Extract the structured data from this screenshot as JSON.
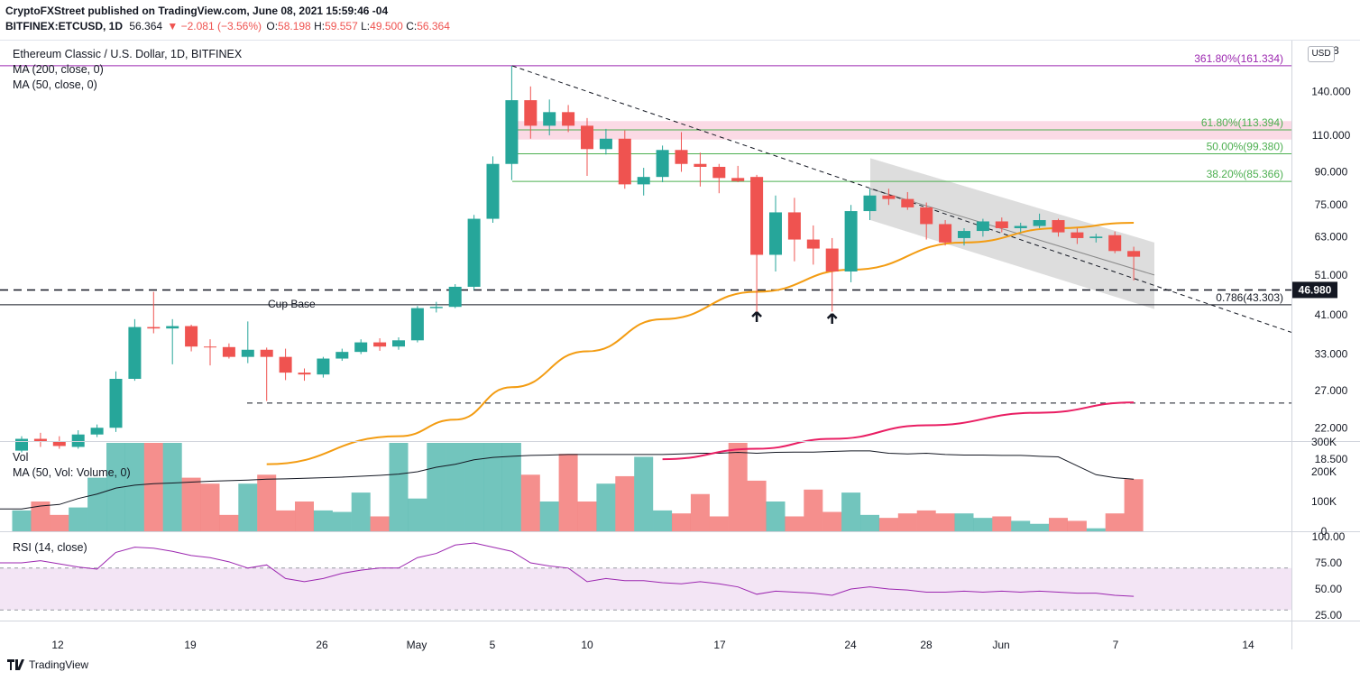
{
  "header": {
    "line1": "CryptoFXStreet published on TradingView.com, June 08, 2021 15:59:46 -04",
    "symbol": "BITFINEX:ETCUSD, 1D",
    "last": "56.364",
    "change": "▼ −2.081 (−3.56%)",
    "o_label": "O:",
    "o_val": "58.198",
    "h_label": "H:",
    "h_val": "59.557",
    "l_label": "L:",
    "l_val": "49.500",
    "c_label": "C:",
    "c_val": "56.364"
  },
  "legend": {
    "title": "Ethereum Classic / U.S. Dollar, 1D, BITFINEX",
    "ma200": "MA (200, close, 0)",
    "ma50": "MA (50, close, 0)",
    "vol": "Vol",
    "vol_ma": "MA (50, Vol: Volume, 0)",
    "rsi": "RSI (14, close)"
  },
  "currency": "USD",
  "footer": {
    "brand": "TradingView"
  },
  "colors": {
    "up": "#26a69a",
    "down": "#ef5350",
    "ma50": "#f39c12",
    "ma200": "#e91e63",
    "rsi": "#9c27b0",
    "rsi_band": "#f3e5f5",
    "fib_green": "#4caf50",
    "fib_purple": "#9c27b0"
  },
  "chart_data": {
    "type": "candlestick",
    "price_axis": {
      "scale": "log",
      "ticks": [
        18.5,
        22,
        27,
        33,
        41,
        51,
        63,
        75,
        90,
        110,
        140
      ],
      "tick_labels": [
        "18.500",
        "22.000",
        "27.000",
        "33.000",
        "41.000",
        "51.000",
        "63.000",
        "75.000",
        "90.000",
        "110.000",
        "140.000"
      ]
    },
    "price_labels": [
      {
        "value": 46.98,
        "text": "46.980"
      }
    ],
    "x_axis": {
      "labels": [
        "12",
        "19",
        "26",
        "May",
        "5",
        "10",
        "17",
        "24",
        "28",
        "Jun",
        "7",
        "14"
      ]
    },
    "candles": [
      {
        "date": "2021-04-10",
        "o": 19.4,
        "h": 21.0,
        "l": 19.2,
        "c": 20.7
      },
      {
        "date": "2021-04-11",
        "o": 20.7,
        "h": 21.4,
        "l": 19.8,
        "c": 20.4
      },
      {
        "date": "2021-04-12",
        "o": 20.4,
        "h": 21.0,
        "l": 19.6,
        "c": 19.9
      },
      {
        "date": "2021-04-13",
        "o": 19.8,
        "h": 21.7,
        "l": 19.6,
        "c": 21.2
      },
      {
        "date": "2021-04-14",
        "o": 21.2,
        "h": 22.4,
        "l": 20.9,
        "c": 22.0
      },
      {
        "date": "2021-04-15",
        "o": 22.0,
        "h": 30.0,
        "l": 21.5,
        "c": 28.8
      },
      {
        "date": "2021-04-16",
        "o": 28.8,
        "h": 40.0,
        "l": 28.5,
        "c": 38.3
      },
      {
        "date": "2021-04-17",
        "o": 38.3,
        "h": 46.5,
        "l": 37.0,
        "c": 38.0
      },
      {
        "date": "2021-04-18",
        "o": 38.0,
        "h": 40.0,
        "l": 31.2,
        "c": 38.5
      },
      {
        "date": "2021-04-19",
        "o": 38.5,
        "h": 38.8,
        "l": 33.5,
        "c": 34.4
      },
      {
        "date": "2021-04-20",
        "o": 34.4,
        "h": 35.8,
        "l": 31.0,
        "c": 34.3
      },
      {
        "date": "2021-04-21",
        "o": 34.3,
        "h": 35.0,
        "l": 32.2,
        "c": 32.5
      },
      {
        "date": "2021-04-22",
        "o": 32.5,
        "h": 39.5,
        "l": 31.4,
        "c": 33.8
      },
      {
        "date": "2021-04-23",
        "o": 33.8,
        "h": 34.2,
        "l": 25.5,
        "c": 32.5
      },
      {
        "date": "2021-04-24",
        "o": 32.5,
        "h": 34.0,
        "l": 28.6,
        "c": 29.8
      },
      {
        "date": "2021-04-25",
        "o": 29.8,
        "h": 30.5,
        "l": 28.5,
        "c": 29.5
      },
      {
        "date": "2021-04-26",
        "o": 29.5,
        "h": 32.5,
        "l": 29.0,
        "c": 32.2
      },
      {
        "date": "2021-04-27",
        "o": 32.2,
        "h": 34.0,
        "l": 31.8,
        "c": 33.4
      },
      {
        "date": "2021-04-28",
        "o": 33.4,
        "h": 35.8,
        "l": 33.0,
        "c": 35.2
      },
      {
        "date": "2021-04-29",
        "o": 35.2,
        "h": 36.0,
        "l": 33.6,
        "c": 34.4
      },
      {
        "date": "2021-04-30",
        "o": 34.4,
        "h": 36.2,
        "l": 33.8,
        "c": 35.6
      },
      {
        "date": "2021-05-01",
        "o": 35.6,
        "h": 43.0,
        "l": 35.2,
        "c": 42.5
      },
      {
        "date": "2021-05-02",
        "o": 42.5,
        "h": 44.0,
        "l": 41.5,
        "c": 42.8
      },
      {
        "date": "2021-05-03",
        "o": 42.8,
        "h": 48.5,
        "l": 42.5,
        "c": 47.8
      },
      {
        "date": "2021-05-04",
        "o": 47.8,
        "h": 71.0,
        "l": 47.0,
        "c": 69.5
      },
      {
        "date": "2021-05-05",
        "o": 69.5,
        "h": 98.0,
        "l": 68.0,
        "c": 94.0
      },
      {
        "date": "2021-05-06",
        "o": 94.0,
        "h": 161.3,
        "l": 86.0,
        "c": 133.5
      },
      {
        "date": "2021-05-07",
        "o": 133.5,
        "h": 144.0,
        "l": 108.0,
        "c": 116.0
      },
      {
        "date": "2021-05-08",
        "o": 116.0,
        "h": 134.0,
        "l": 110.0,
        "c": 125.0
      },
      {
        "date": "2021-05-09",
        "o": 125.0,
        "h": 130.0,
        "l": 112.0,
        "c": 116.0
      },
      {
        "date": "2021-05-10",
        "o": 116.0,
        "h": 121.0,
        "l": 88.0,
        "c": 102.0
      },
      {
        "date": "2021-05-11",
        "o": 102.0,
        "h": 114.0,
        "l": 99.0,
        "c": 108.0
      },
      {
        "date": "2021-05-12",
        "o": 108.0,
        "h": 113.0,
        "l": 82.0,
        "c": 84.0
      },
      {
        "date": "2021-05-13",
        "o": 84.0,
        "h": 92.0,
        "l": 79.0,
        "c": 87.5
      },
      {
        "date": "2021-05-14",
        "o": 87.5,
        "h": 104.0,
        "l": 85.0,
        "c": 101.5
      },
      {
        "date": "2021-05-15",
        "o": 101.5,
        "h": 112.0,
        "l": 90.0,
        "c": 94.0
      },
      {
        "date": "2021-05-16",
        "o": 94.0,
        "h": 100.0,
        "l": 83.0,
        "c": 92.5
      },
      {
        "date": "2021-05-17",
        "o": 92.5,
        "h": 94.0,
        "l": 80.0,
        "c": 87.0
      },
      {
        "date": "2021-05-18",
        "o": 87.0,
        "h": 93.0,
        "l": 85.0,
        "c": 85.5
      },
      {
        "date": "2021-05-19",
        "o": 87.5,
        "h": 88.5,
        "l": 41.7,
        "c": 57.0
      },
      {
        "date": "2021-05-20",
        "o": 57.0,
        "h": 79.0,
        "l": 52.0,
        "c": 72.0
      },
      {
        "date": "2021-05-21",
        "o": 72.0,
        "h": 78.0,
        "l": 55.0,
        "c": 62.0
      },
      {
        "date": "2021-05-22",
        "o": 62.0,
        "h": 67.0,
        "l": 54.0,
        "c": 59.0
      },
      {
        "date": "2021-05-23",
        "o": 59.0,
        "h": 62.5,
        "l": 41.7,
        "c": 52.0
      },
      {
        "date": "2021-05-24",
        "o": 52.0,
        "h": 75.0,
        "l": 49.0,
        "c": 72.5
      },
      {
        "date": "2021-05-25",
        "o": 72.5,
        "h": 82.0,
        "l": 69.0,
        "c": 79.0
      },
      {
        "date": "2021-05-26",
        "o": 79.0,
        "h": 82.0,
        "l": 75.0,
        "c": 77.5
      },
      {
        "date": "2021-05-27",
        "o": 77.5,
        "h": 80.5,
        "l": 73.0,
        "c": 74.0
      },
      {
        "date": "2021-05-28",
        "o": 74.0,
        "h": 76.0,
        "l": 62.0,
        "c": 67.5
      },
      {
        "date": "2021-05-29",
        "o": 67.5,
        "h": 69.0,
        "l": 60.0,
        "c": 61.0
      },
      {
        "date": "2021-05-30",
        "o": 62.5,
        "h": 66.0,
        "l": 60.0,
        "c": 65.0
      },
      {
        "date": "2021-05-31",
        "o": 65.0,
        "h": 69.5,
        "l": 63.0,
        "c": 68.5
      },
      {
        "date": "2021-06-01",
        "o": 68.5,
        "h": 70.0,
        "l": 64.5,
        "c": 66.0
      },
      {
        "date": "2021-06-02",
        "o": 66.0,
        "h": 68.0,
        "l": 64.5,
        "c": 66.8
      },
      {
        "date": "2021-06-03",
        "o": 66.8,
        "h": 71.5,
        "l": 66.0,
        "c": 69.0
      },
      {
        "date": "2021-06-04",
        "o": 69.0,
        "h": 69.5,
        "l": 63.0,
        "c": 64.5
      },
      {
        "date": "2021-06-05",
        "o": 64.5,
        "h": 66.0,
        "l": 60.5,
        "c": 62.5
      },
      {
        "date": "2021-06-06",
        "o": 62.5,
        "h": 64.0,
        "l": 61.0,
        "c": 63.0
      },
      {
        "date": "2021-06-07",
        "o": 63.5,
        "h": 64.8,
        "l": 57.5,
        "c": 58.2
      },
      {
        "date": "2021-06-08",
        "o": 58.2,
        "h": 59.6,
        "l": 49.5,
        "c": 56.4
      }
    ],
    "ma50": [
      {
        "date": "2021-04-23",
        "v": 18.0
      },
      {
        "date": "2021-04-30",
        "v": 21.0
      },
      {
        "date": "2021-05-03",
        "v": 23.0
      },
      {
        "date": "2021-05-06",
        "v": 27.5
      },
      {
        "date": "2021-05-10",
        "v": 33.5
      },
      {
        "date": "2021-05-14",
        "v": 40.0
      },
      {
        "date": "2021-05-19",
        "v": 46.5
      },
      {
        "date": "2021-05-24",
        "v": 52.5
      },
      {
        "date": "2021-05-30",
        "v": 61.0
      },
      {
        "date": "2021-06-04",
        "v": 66.0
      },
      {
        "date": "2021-06-08",
        "v": 68.0
      }
    ],
    "ma200": [
      {
        "date": "2021-05-14",
        "v": 18.5
      },
      {
        "date": "2021-05-19",
        "v": 19.6
      },
      {
        "date": "2021-05-23",
        "v": 20.7
      },
      {
        "date": "2021-05-28",
        "v": 22.3
      },
      {
        "date": "2021-06-03",
        "v": 23.9
      },
      {
        "date": "2021-06-08",
        "v": 25.3
      }
    ],
    "fib_levels": [
      {
        "label": "361.80%(161.334)",
        "value": 161.334,
        "color": "#9c27b0"
      },
      {
        "label": "61.80%(113.394)",
        "value": 113.394,
        "color": "#4caf50"
      },
      {
        "label": "50.00%(99.380)",
        "value": 99.38,
        "color": "#4caf50"
      },
      {
        "label": "38.20%(85.366)",
        "value": 85.366,
        "color": "#4caf50"
      },
      {
        "label": "0.786(43.303)",
        "value": 43.303,
        "color": "#131722"
      }
    ],
    "annotations": {
      "cup_base": "Cup Base"
    },
    "volume": {
      "axis_labels": [
        "300K",
        "200K",
        "100K",
        "0"
      ],
      "values": [
        70,
        100,
        55,
        80,
        180,
        450,
        700,
        520,
        470,
        180,
        160,
        55,
        160,
        190,
        70,
        100,
        70,
        65,
        130,
        50,
        450,
        110,
        460,
        420,
        660,
        560,
        650,
        190,
        100,
        260,
        100,
        160,
        185,
        250,
        70,
        60,
        125,
        50,
        300,
        170,
        100,
        50,
        140,
        65,
        130,
        55,
        45,
        60,
        70,
        60,
        60,
        45,
        50,
        35,
        25,
        45,
        35,
        10,
        60,
        175
      ],
      "ma_values": [
        75,
        85,
        90,
        110,
        125,
        145,
        155,
        160,
        162,
        165,
        168,
        170,
        172,
        175,
        176,
        178,
        180,
        182,
        185,
        188,
        192,
        200,
        215,
        225,
        240,
        248,
        252,
        255,
        256,
        258,
        258,
        258,
        258,
        258,
        258,
        260,
        262,
        262,
        265,
        262,
        265,
        266,
        266,
        268,
        270,
        270,
        262,
        260,
        262,
        258,
        256,
        256,
        255,
        255,
        252,
        250,
        220,
        190,
        180,
        175
      ]
    },
    "rsi": {
      "axis_labels": [
        "100.00",
        "75.00",
        "50.00",
        "25.00"
      ],
      "band": [
        30,
        70
      ],
      "values": [
        75,
        77,
        74,
        71,
        69,
        85,
        90,
        89,
        86,
        82,
        80,
        76,
        70,
        73,
        60,
        57,
        60,
        65,
        68,
        70,
        70,
        80,
        84,
        92,
        94,
        90,
        86,
        75,
        72,
        70,
        57,
        60,
        58,
        58,
        56,
        55,
        57,
        55,
        52,
        45,
        48,
        47,
        46,
        44,
        50,
        52,
        50,
        49,
        47,
        47,
        48,
        47,
        48,
        47,
        48,
        47,
        46,
        46,
        44,
        43
      ]
    }
  }
}
